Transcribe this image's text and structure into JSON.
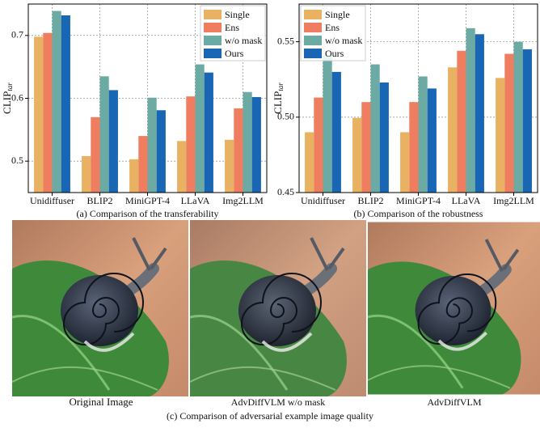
{
  "chart_data": [
    {
      "type": "bar",
      "ylabel": "CLIP",
      "ylabel_subscript": "tar",
      "caption": "(a) Comparison of the transferability",
      "categories": [
        "Unidiffuser",
        "BLIP2",
        "MiniGPT-4",
        "LLaVA",
        "Img2LLM"
      ],
      "series": [
        {
          "name": "Single",
          "color": "#e9b262",
          "values": [
            0.698,
            0.508,
            0.503,
            0.532,
            0.534
          ]
        },
        {
          "name": "Ens",
          "color": "#ee7e5f",
          "values": [
            0.704,
            0.57,
            0.54,
            0.603,
            0.584
          ]
        },
        {
          "name": "w/o mask",
          "color": "#6cab a3",
          "values": [
            0.739,
            0.635,
            0.601,
            0.654,
            0.61
          ]
        },
        {
          "name": "Ours",
          "color": "#1866b4",
          "values": [
            0.732,
            0.613,
            0.581,
            0.641,
            0.602
          ]
        }
      ],
      "ylim": [
        0.45,
        0.75
      ],
      "yticks": [
        0.5,
        0.6,
        0.7
      ],
      "grid": true,
      "legend": "upper right"
    },
    {
      "type": "bar",
      "ylabel": "CLIP",
      "ylabel_subscript": "tar",
      "caption": "(b) Comparison of the robustness",
      "categories": [
        "Unidiffuser",
        "BLIP2",
        "MiniGPT-4",
        "LLaVA",
        "Img2LLM"
      ],
      "series": [
        {
          "name": "Single",
          "color": "#e9b262",
          "values": [
            0.49,
            0.4995,
            0.49,
            0.533,
            0.526
          ]
        },
        {
          "name": "Ens",
          "color": "#ee7e5f",
          "values": [
            0.513,
            0.51,
            0.51,
            0.544,
            0.542
          ]
        },
        {
          "name": "w/o mask",
          "color": "#6caba3",
          "values": [
            0.541,
            0.535,
            0.527,
            0.559,
            0.55
          ]
        },
        {
          "name": "Ours",
          "color": "#1866b4",
          "values": [
            0.53,
            0.523,
            0.519,
            0.555,
            0.545
          ]
        }
      ],
      "ylim": [
        0.45,
        0.575
      ],
      "yticks": [
        0.45,
        {
          "value": 0.5,
          "label": "0.50"
        },
        0.55
      ],
      "grid": true,
      "legend": "upper left"
    }
  ],
  "images": {
    "labels": [
      "Original Image",
      "AdvDiffVLM w/o mask",
      "AdvDiffVLM"
    ],
    "caption": "(c) Comparison of  adversarial example image quality"
  }
}
